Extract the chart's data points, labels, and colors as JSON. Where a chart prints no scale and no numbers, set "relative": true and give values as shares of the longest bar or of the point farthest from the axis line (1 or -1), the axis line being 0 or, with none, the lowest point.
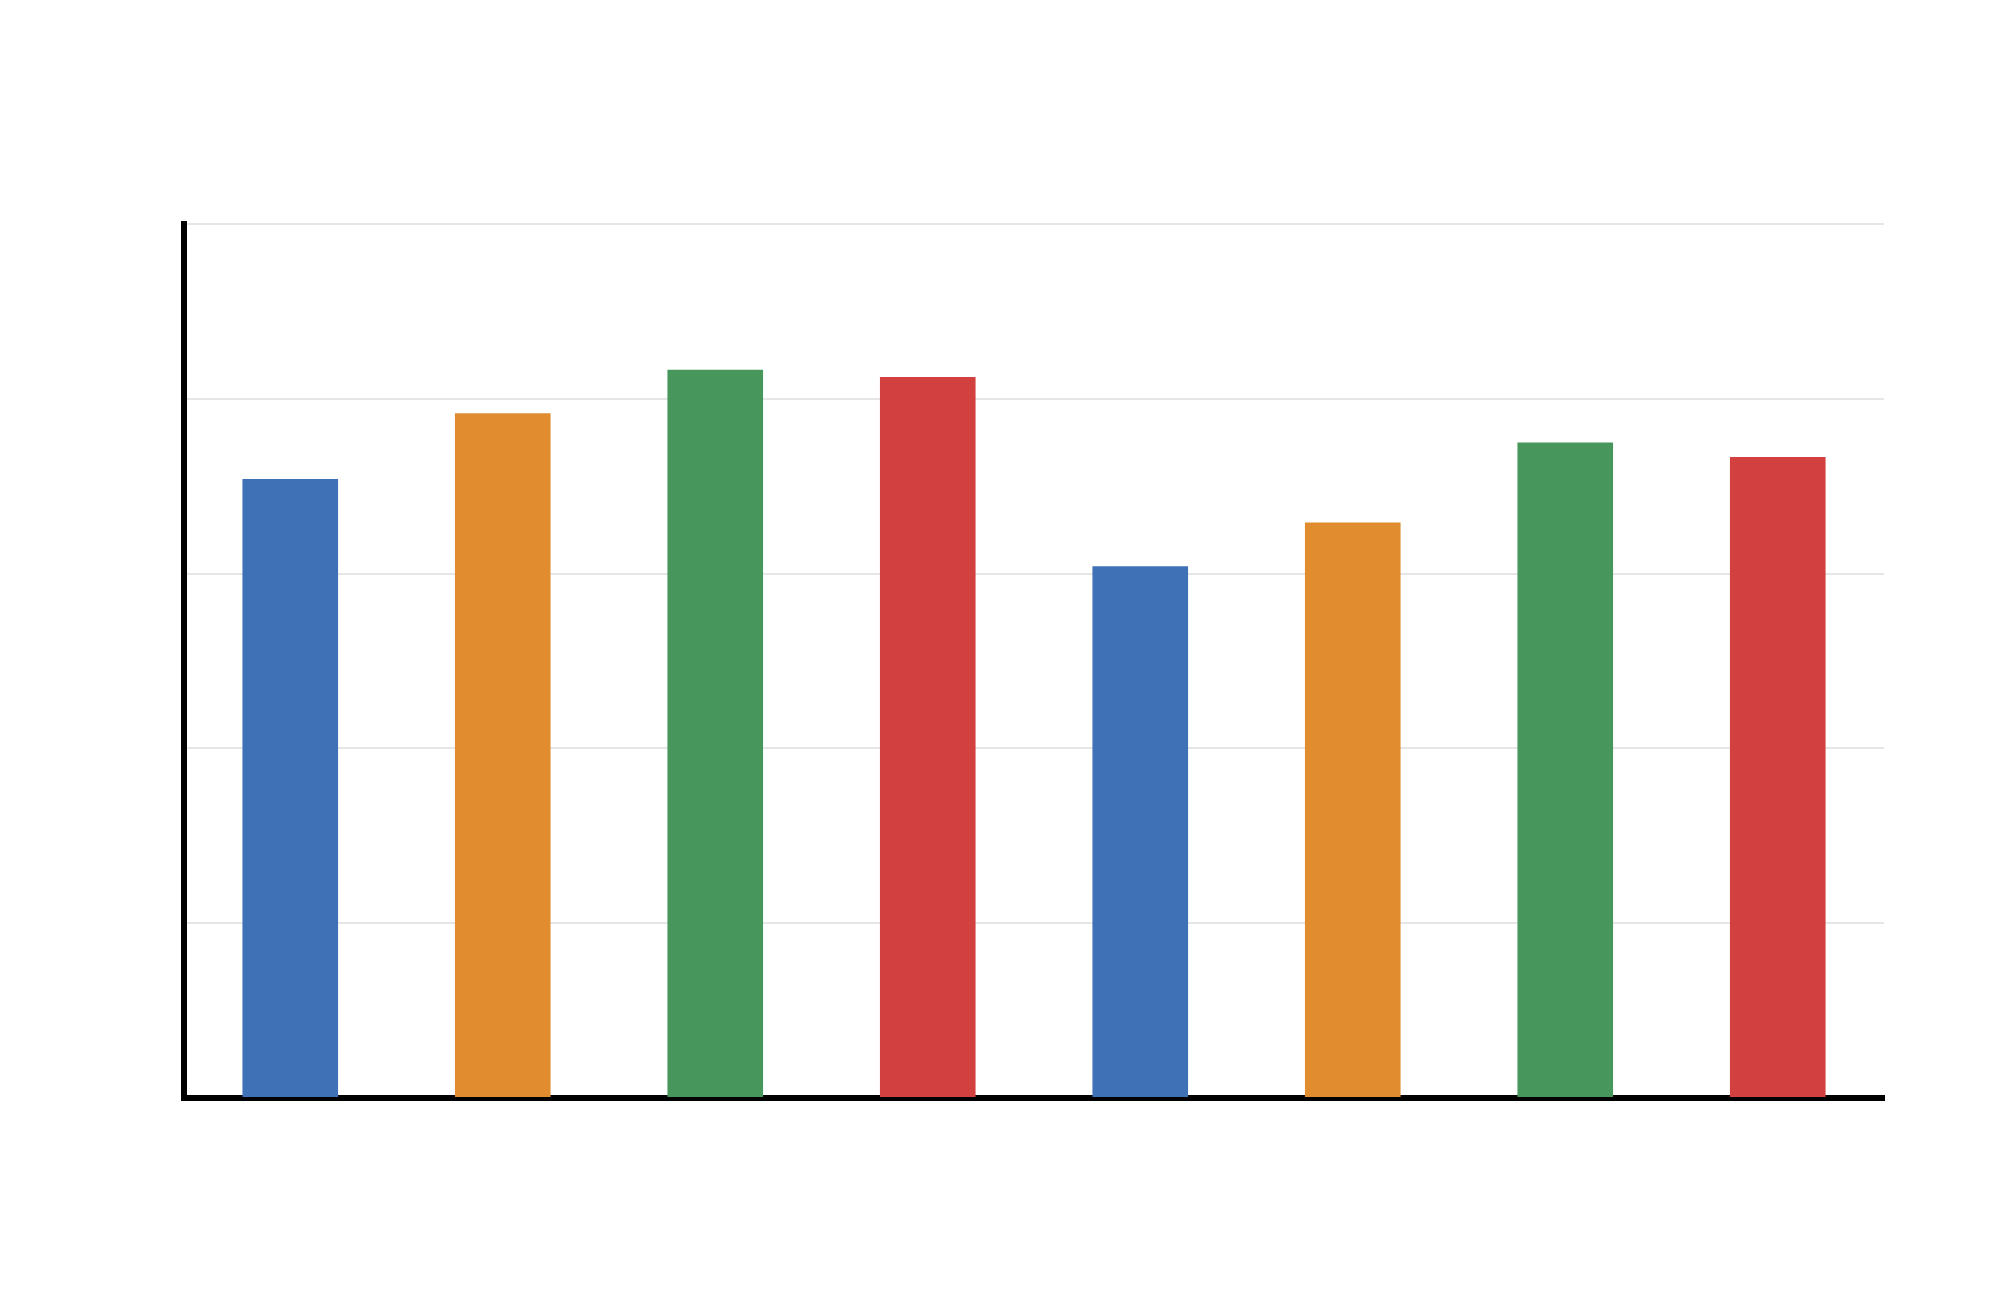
{
  "chart_data": {
    "type": "bar",
    "relative": true,
    "categories": [
      null,
      null,
      null,
      null,
      null,
      null,
      null,
      null
    ],
    "values": [
      0.85,
      0.94,
      1,
      0.99,
      0.73,
      0.79,
      0.9,
      0.88
    ],
    "colors": [
      "#3f71b7",
      "#e18d2f",
      "#47975c",
      "#d24040",
      "#3f71b7",
      "#e18d2f",
      "#47975c",
      "#d24040"
    ],
    "grid": "y",
    "legend": false
  }
}
